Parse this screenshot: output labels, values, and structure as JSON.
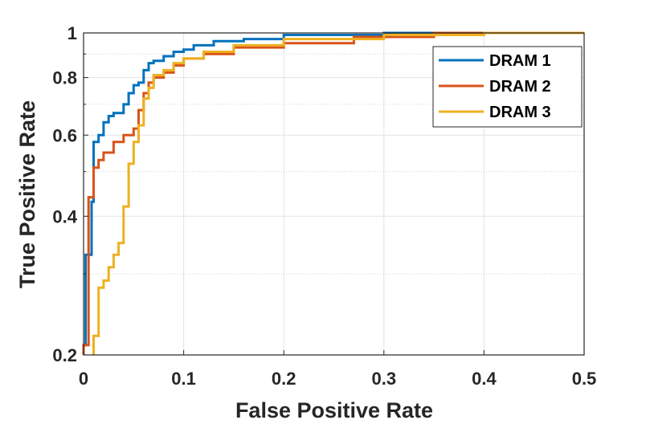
{
  "chart_data": {
    "type": "line",
    "title": "",
    "xlabel": "False Positive Rate",
    "ylabel": "True Positive Rate",
    "xlim": [
      0,
      0.5
    ],
    "ylim": [
      0.2,
      1
    ],
    "yscale": "log",
    "grid": true,
    "minor_grid": true,
    "legend_position": "top-right",
    "x_ticks": [
      {
        "value": 0,
        "label": "0"
      },
      {
        "value": 0.1,
        "label": "0.1"
      },
      {
        "value": 0.2,
        "label": "0.2"
      },
      {
        "value": 0.3,
        "label": "0.3"
      },
      {
        "value": 0.4,
        "label": "0.4"
      },
      {
        "value": 0.5,
        "label": "0.5"
      }
    ],
    "y_ticks": [
      {
        "value": 0.2,
        "label": "0.2"
      },
      {
        "value": 0.4,
        "label": "0.4"
      },
      {
        "value": 0.6,
        "label": "0.6"
      },
      {
        "value": 0.8,
        "label": "0.8"
      },
      {
        "value": 1,
        "label": "1"
      }
    ],
    "y_minor_ticks": [
      0.3,
      0.5,
      0.7,
      0.9
    ],
    "series": [
      {
        "name": "DRAM 1",
        "color": "#0072BD",
        "x": [
          0,
          0,
          0.002,
          0.002,
          0.008,
          0.008,
          0.01,
          0.01,
          0.015,
          0.015,
          0.02,
          0.02,
          0.025,
          0.025,
          0.03,
          0.03,
          0.04,
          0.04,
          0.045,
          0.045,
          0.05,
          0.05,
          0.055,
          0.055,
          0.06,
          0.06,
          0.065,
          0.065,
          0.07,
          0.07,
          0.08,
          0.08,
          0.09,
          0.09,
          0.1,
          0.1,
          0.11,
          0.11,
          0.13,
          0.13,
          0.16,
          0.16,
          0.2,
          0.2,
          0.3,
          0.3,
          0.4,
          0.4,
          0.5
        ],
        "y": [
          0.2,
          0.21,
          0.21,
          0.33,
          0.33,
          0.43,
          0.43,
          0.58,
          0.58,
          0.6,
          0.6,
          0.64,
          0.64,
          0.66,
          0.66,
          0.67,
          0.67,
          0.7,
          0.7,
          0.74,
          0.74,
          0.77,
          0.77,
          0.78,
          0.78,
          0.83,
          0.83,
          0.86,
          0.86,
          0.87,
          0.87,
          0.89,
          0.89,
          0.91,
          0.91,
          0.92,
          0.92,
          0.94,
          0.94,
          0.96,
          0.96,
          0.97,
          0.97,
          0.99,
          0.99,
          1.0,
          1.0,
          1.0,
          1.0
        ]
      },
      {
        "name": "DRAM 2",
        "color": "#D95319",
        "x": [
          0,
          0,
          0.005,
          0.005,
          0.01,
          0.01,
          0.015,
          0.015,
          0.02,
          0.02,
          0.03,
          0.03,
          0.04,
          0.04,
          0.05,
          0.05,
          0.055,
          0.055,
          0.06,
          0.06,
          0.065,
          0.065,
          0.07,
          0.07,
          0.08,
          0.08,
          0.09,
          0.09,
          0.1,
          0.1,
          0.12,
          0.12,
          0.15,
          0.15,
          0.2,
          0.2,
          0.27,
          0.27,
          0.35,
          0.35,
          0.5
        ],
        "y": [
          0.2,
          0.21,
          0.21,
          0.44,
          0.44,
          0.51,
          0.51,
          0.53,
          0.53,
          0.55,
          0.55,
          0.58,
          0.58,
          0.6,
          0.6,
          0.62,
          0.62,
          0.68,
          0.68,
          0.74,
          0.74,
          0.78,
          0.78,
          0.8,
          0.8,
          0.82,
          0.82,
          0.85,
          0.85,
          0.88,
          0.88,
          0.9,
          0.9,
          0.93,
          0.93,
          0.95,
          0.95,
          0.98,
          0.98,
          1.0,
          1.0
        ]
      },
      {
        "name": "DRAM 3",
        "color": "#EDB120",
        "x": [
          0.01,
          0.01,
          0.015,
          0.015,
          0.02,
          0.02,
          0.025,
          0.025,
          0.03,
          0.03,
          0.035,
          0.035,
          0.04,
          0.04,
          0.045,
          0.045,
          0.05,
          0.05,
          0.055,
          0.055,
          0.06,
          0.06,
          0.065,
          0.065,
          0.07,
          0.07,
          0.08,
          0.08,
          0.09,
          0.09,
          0.1,
          0.1,
          0.12,
          0.12,
          0.15,
          0.15,
          0.2,
          0.2,
          0.3,
          0.3,
          0.4,
          0.4,
          0.5
        ],
        "y": [
          0.2,
          0.22,
          0.22,
          0.28,
          0.28,
          0.29,
          0.29,
          0.31,
          0.31,
          0.33,
          0.33,
          0.35,
          0.35,
          0.42,
          0.42,
          0.52,
          0.52,
          0.58,
          0.58,
          0.63,
          0.63,
          0.72,
          0.72,
          0.76,
          0.76,
          0.81,
          0.81,
          0.83,
          0.83,
          0.86,
          0.86,
          0.88,
          0.88,
          0.91,
          0.91,
          0.94,
          0.94,
          0.97,
          0.97,
          0.99,
          0.99,
          1.0,
          1.0
        ]
      }
    ]
  }
}
